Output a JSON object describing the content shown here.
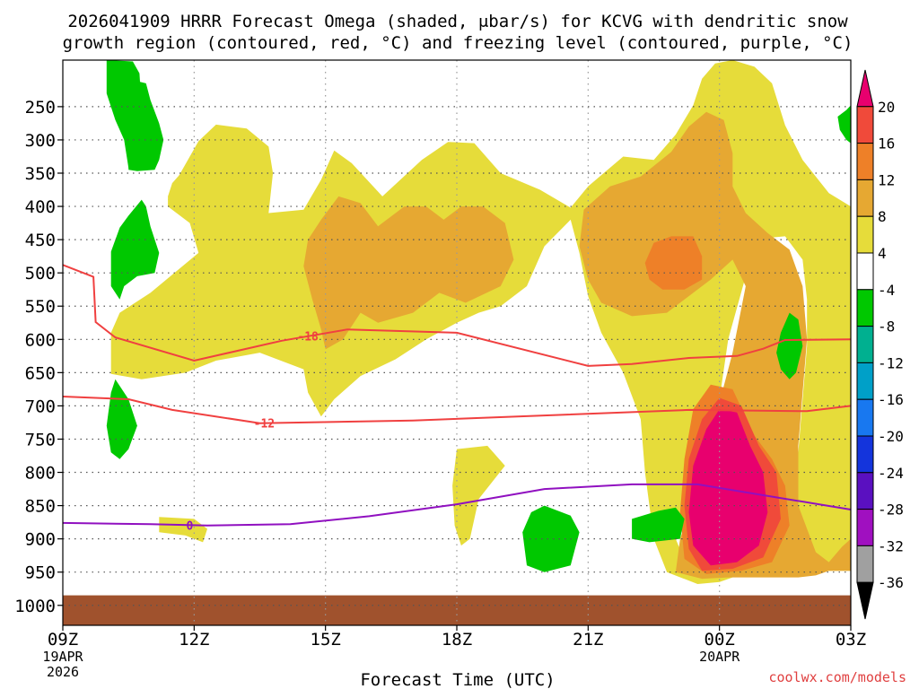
{
  "chart_data": {
    "type": "heatmap",
    "title_line1": "2026041909 HRRR Forecast Omega (shaded, μbar/s) for KCVG with dendritic snow",
    "title_line2": "growth region (contoured, red, °C) and freezing level (contoured, purple, °C)",
    "xlabel": "Forecast Time (UTC)",
    "credit": "coolwx.com/models",
    "x_ticks": [
      {
        "hour": 0,
        "label": "09Z",
        "sub1": "19APR",
        "sub2": "2026"
      },
      {
        "hour": 3,
        "label": "12Z"
      },
      {
        "hour": 6,
        "label": "15Z"
      },
      {
        "hour": 9,
        "label": "18Z"
      },
      {
        "hour": 12,
        "label": "21Z"
      },
      {
        "hour": 15,
        "label": "00Z",
        "sub1": "20APR"
      },
      {
        "hour": 18,
        "label": "03Z"
      }
    ],
    "xlim_hours": [
      0,
      18
    ],
    "y_ticks": [
      250,
      300,
      350,
      400,
      450,
      500,
      550,
      600,
      650,
      700,
      750,
      800,
      850,
      900,
      950,
      1000
    ],
    "ylim_hPa": [
      1030,
      180
    ],
    "y_axis_reversed": true,
    "grid": true,
    "colorbar": {
      "labels": [
        "20",
        "16",
        "12",
        "8",
        "4",
        "-4",
        "-8",
        "-12",
        "-16",
        "-20",
        "-24",
        "-28",
        "-32",
        "-36"
      ],
      "colors": [
        "#e8006e",
        "#f04a3a",
        "#ee8028",
        "#e6a832",
        "#e6dc3a",
        "#ffffff",
        "#00c800",
        "#00b090",
        "#00a0c8",
        "#1878f0",
        "#1434dc",
        "#5a10c0",
        "#a010c0",
        "#a0a0a0",
        "#000000"
      ]
    },
    "omega_levels": {
      "pos_4_8": "#e6dc3a",
      "pos_8_12": "#e6a832",
      "pos_12_16": "#ee8028",
      "pos_16_20": "#f04a3a",
      "pos_gt_20": "#e8006e",
      "neg_4_8": "#00c800"
    },
    "ground_color": "#a0522d",
    "contours": [
      {
        "label": "-18",
        "color": "#f04040",
        "label_hour": 5.6,
        "points": [
          [
            0,
            488
          ],
          [
            0.7,
            506
          ],
          [
            0.75,
            574
          ],
          [
            1.2,
            597
          ],
          [
            3,
            632
          ],
          [
            5,
            602
          ],
          [
            6.5,
            585
          ],
          [
            9,
            590
          ],
          [
            12,
            640
          ],
          [
            13,
            637
          ],
          [
            14.3,
            628
          ],
          [
            15.4,
            625
          ],
          [
            16,
            614
          ],
          [
            16.5,
            601
          ],
          [
            18,
            600
          ]
        ]
      },
      {
        "label": "-12",
        "color": "#f04040",
        "label_hour": 4.6,
        "points": [
          [
            0,
            686
          ],
          [
            1.5,
            690
          ],
          [
            2.5,
            706
          ],
          [
            4.5,
            726
          ],
          [
            8,
            722
          ],
          [
            14.3,
            706
          ],
          [
            17,
            708
          ],
          [
            18,
            700
          ]
        ]
      },
      {
        "label": "0",
        "color": "#9010c0",
        "label_hour": 2.9,
        "points": [
          [
            0,
            876
          ],
          [
            2,
            878
          ],
          [
            3.3,
            880
          ],
          [
            5.2,
            878
          ],
          [
            7,
            866
          ],
          [
            9,
            848
          ],
          [
            11,
            825
          ],
          [
            13,
            818
          ],
          [
            14.5,
            818
          ],
          [
            18,
            856
          ]
        ]
      }
    ]
  }
}
